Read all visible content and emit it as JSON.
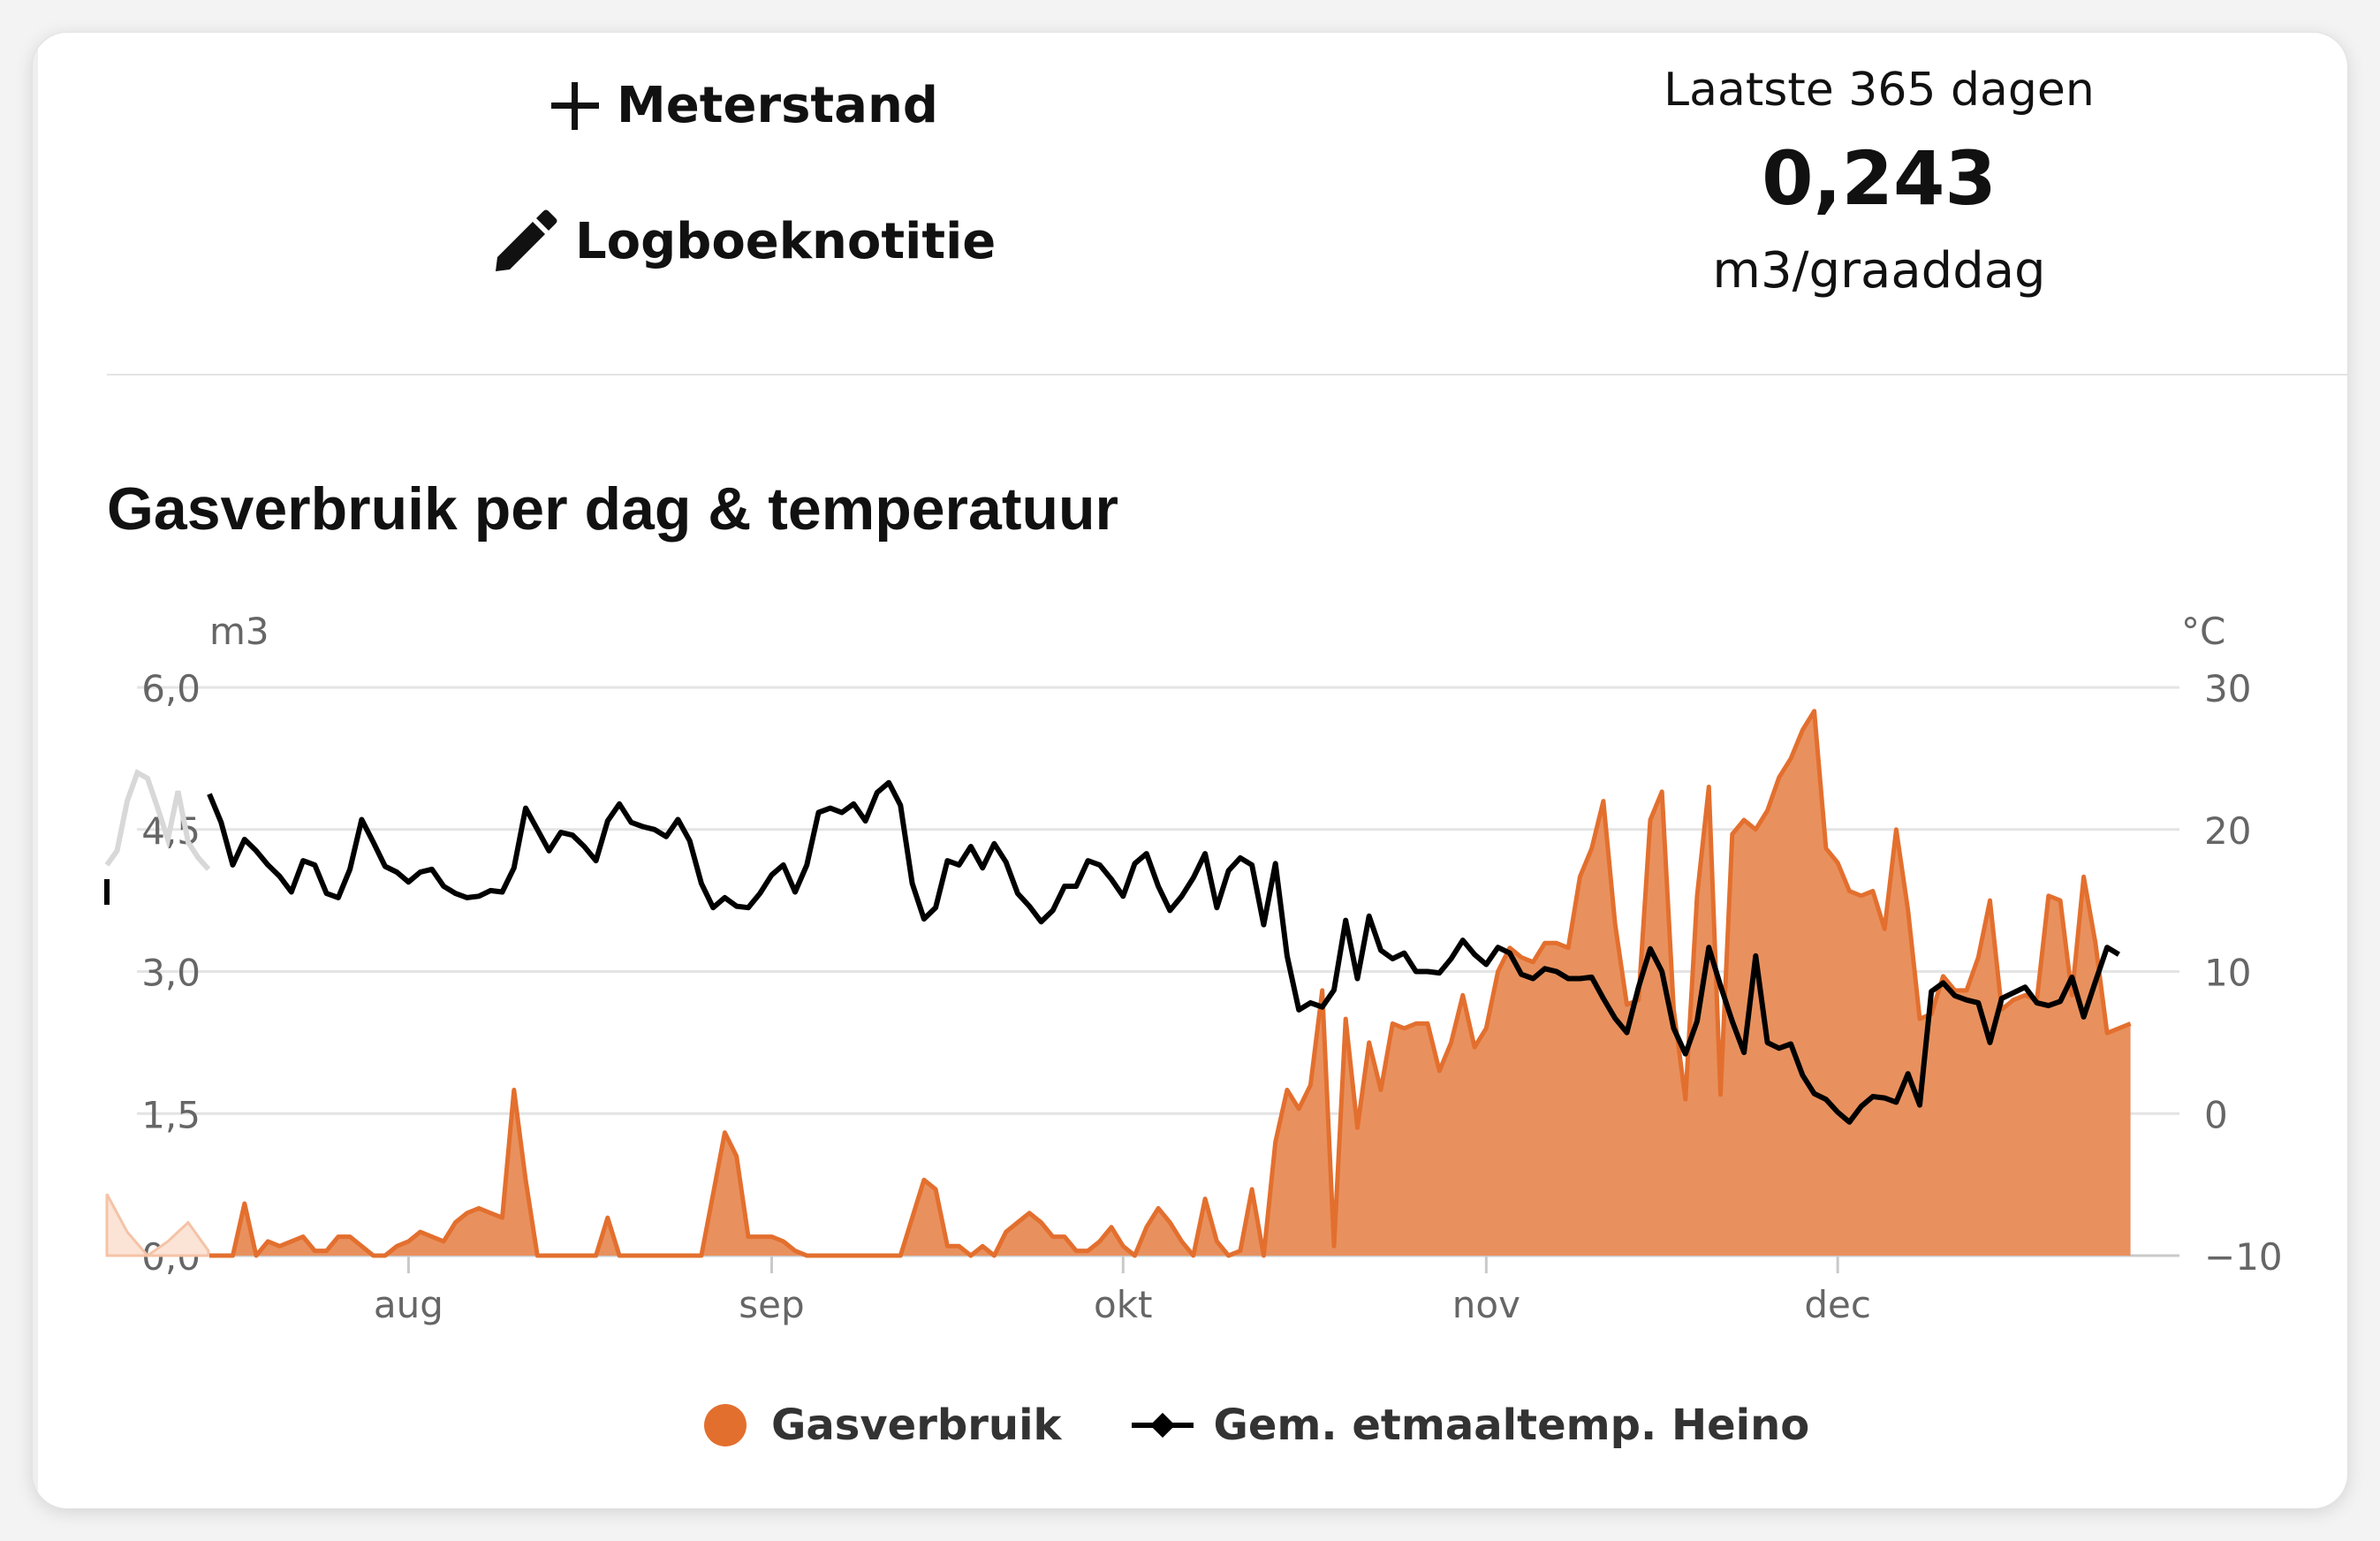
{
  "actions": {
    "meterstand_label": "Meterstand",
    "logboek_label": "Logboeknotitie"
  },
  "stat": {
    "label": "Laatste 365 dagen",
    "value": "0,243",
    "unit": "m3/graaddag"
  },
  "colors": {
    "gas": "#e36f2e",
    "gas_fill": "#e8915e",
    "temperature": "#000000"
  },
  "chart_data": {
    "type": "area",
    "title": "Gasverbruik per dag & temperatuur",
    "left_unit": "m3",
    "right_unit": "°C",
    "left_ticks": [
      "6,0",
      "4,5",
      "3,0",
      "1,5",
      "0,0"
    ],
    "right_ticks": [
      "30",
      "20",
      "10",
      "0",
      "−10"
    ],
    "ylim_left": [
      0,
      6
    ],
    "ylim_right": [
      -10,
      30
    ],
    "x_labels": [
      {
        "label": "aug",
        "day": 17
      },
      {
        "label": "sep",
        "day": 48
      },
      {
        "label": "okt",
        "day": 78
      },
      {
        "label": "nov",
        "day": 109
      },
      {
        "label": "dec",
        "day": 139
      }
    ],
    "legend": [
      "Gasverbruik",
      "Gem. etmaaltemp. Heino"
    ],
    "series": [
      {
        "name": "Gasverbruik",
        "values": [
          0.0,
          0.0,
          0.0,
          0.55,
          0.0,
          0.15,
          0.1,
          0.15,
          0.2,
          0.05,
          0.05,
          0.2,
          0.2,
          0.1,
          0.0,
          0.0,
          0.1,
          0.15,
          0.25,
          0.2,
          0.15,
          0.35,
          0.45,
          0.5,
          0.45,
          0.4,
          1.75,
          0.8,
          0.0,
          0.0,
          0.0,
          0.0,
          0.0,
          0.0,
          0.4,
          0.0,
          0.0,
          0.0,
          0.0,
          0.0,
          0.0,
          0.0,
          0.0,
          0.65,
          1.3,
          1.05,
          0.2,
          0.2,
          0.2,
          0.15,
          0.05,
          0.0,
          0.0,
          0.0,
          0.0,
          0.0,
          0.0,
          0.0,
          0.0,
          0.0,
          0.4,
          0.8,
          0.7,
          0.1,
          0.1,
          0.0,
          0.1,
          0.0,
          0.25,
          0.35,
          0.45,
          0.35,
          0.2,
          0.2,
          0.05,
          0.05,
          0.15,
          0.3,
          0.1,
          0.0,
          0.3,
          0.5,
          0.35,
          0.15,
          0.0,
          0.6,
          0.15,
          0.0,
          0.05,
          0.7,
          0.0,
          1.2,
          1.75,
          1.55,
          1.8,
          2.8,
          0.1,
          2.5,
          1.35,
          2.25,
          1.75,
          2.45,
          2.4,
          2.45,
          2.45,
          1.95,
          2.25,
          2.75,
          2.2,
          2.4,
          3.0,
          3.25,
          3.15,
          3.1,
          3.3,
          3.3,
          3.25,
          4.0,
          4.3,
          4.8,
          3.5,
          2.65,
          2.7,
          4.6,
          4.9,
          2.6,
          1.65,
          3.8,
          4.95,
          1.7,
          4.45,
          4.6,
          4.5,
          4.7,
          5.05,
          5.25,
          5.55,
          5.75,
          4.3,
          4.15,
          3.85,
          3.8,
          3.85,
          3.45,
          4.5,
          3.65,
          2.5,
          2.55,
          2.95,
          2.8,
          2.8,
          3.15,
          3.75,
          2.6,
          2.7,
          2.75,
          2.7,
          3.8,
          3.75,
          2.75,
          4.0,
          3.3,
          2.35,
          2.4,
          2.45
        ]
      },
      {
        "name": "Gem. etmaaltemp. Heino",
        "values": [
          22.5,
          20.5,
          17.5,
          19.3,
          18.5,
          17.5,
          16.7,
          15.6,
          17.8,
          17.5,
          15.5,
          15.2,
          17.2,
          20.7,
          19.1,
          17.4,
          17.0,
          16.3,
          17.0,
          17.2,
          16.0,
          15.5,
          15.2,
          15.3,
          15.7,
          15.6,
          17.3,
          21.5,
          20.0,
          18.5,
          19.8,
          19.6,
          18.8,
          17.8,
          20.6,
          21.8,
          20.5,
          20.2,
          20.0,
          19.5,
          20.7,
          19.2,
          16.2,
          14.5,
          15.2,
          14.6,
          14.5,
          15.5,
          16.8,
          17.5,
          15.6,
          17.5,
          21.2,
          21.5,
          21.2,
          21.8,
          20.6,
          22.6,
          23.3,
          21.7,
          16.2,
          13.7,
          14.5,
          17.8,
          17.5,
          18.8,
          17.3,
          19.0,
          17.7,
          15.5,
          14.6,
          13.5,
          14.3,
          16.0,
          16.0,
          17.8,
          17.5,
          16.5,
          15.3,
          17.6,
          18.3,
          16.0,
          14.3,
          15.3,
          16.6,
          18.3,
          14.5,
          17.1,
          18.0,
          17.5,
          13.3,
          17.6,
          11.1,
          7.3,
          7.8,
          7.5,
          8.7,
          13.6,
          9.5,
          13.9,
          11.5,
          10.9,
          11.3,
          10.0,
          10.0,
          9.9,
          10.9,
          12.2,
          11.2,
          10.5,
          11.7,
          11.3,
          9.8,
          9.5,
          10.2,
          10.0,
          9.5,
          9.5,
          9.6,
          8.1,
          6.7,
          5.7,
          8.9,
          11.6,
          10.0,
          6.0,
          4.2,
          6.5,
          11.7,
          9.0,
          6.5,
          4.3,
          11.1,
          5.0,
          4.6,
          4.9,
          2.7,
          1.4,
          1.0,
          0.1,
          -0.6,
          0.5,
          1.2,
          1.1,
          0.8,
          2.8,
          0.6,
          8.6,
          9.2,
          8.3,
          8.0,
          7.8,
          5.0,
          8.1,
          8.5,
          8.9,
          7.8,
          7.6,
          7.9,
          9.6,
          6.8,
          9.3,
          11.7,
          11.2
        ]
      }
    ],
    "ghost_gas_values": [
      0.65,
      0.25,
      0.0,
      0.15,
      0.35,
      0.05
    ],
    "ghost_temp_values": [
      17.5,
      18.5,
      22.0,
      24.0,
      23.6,
      21.5,
      19.3,
      22.7,
      19.1,
      18.0,
      17.2
    ]
  }
}
